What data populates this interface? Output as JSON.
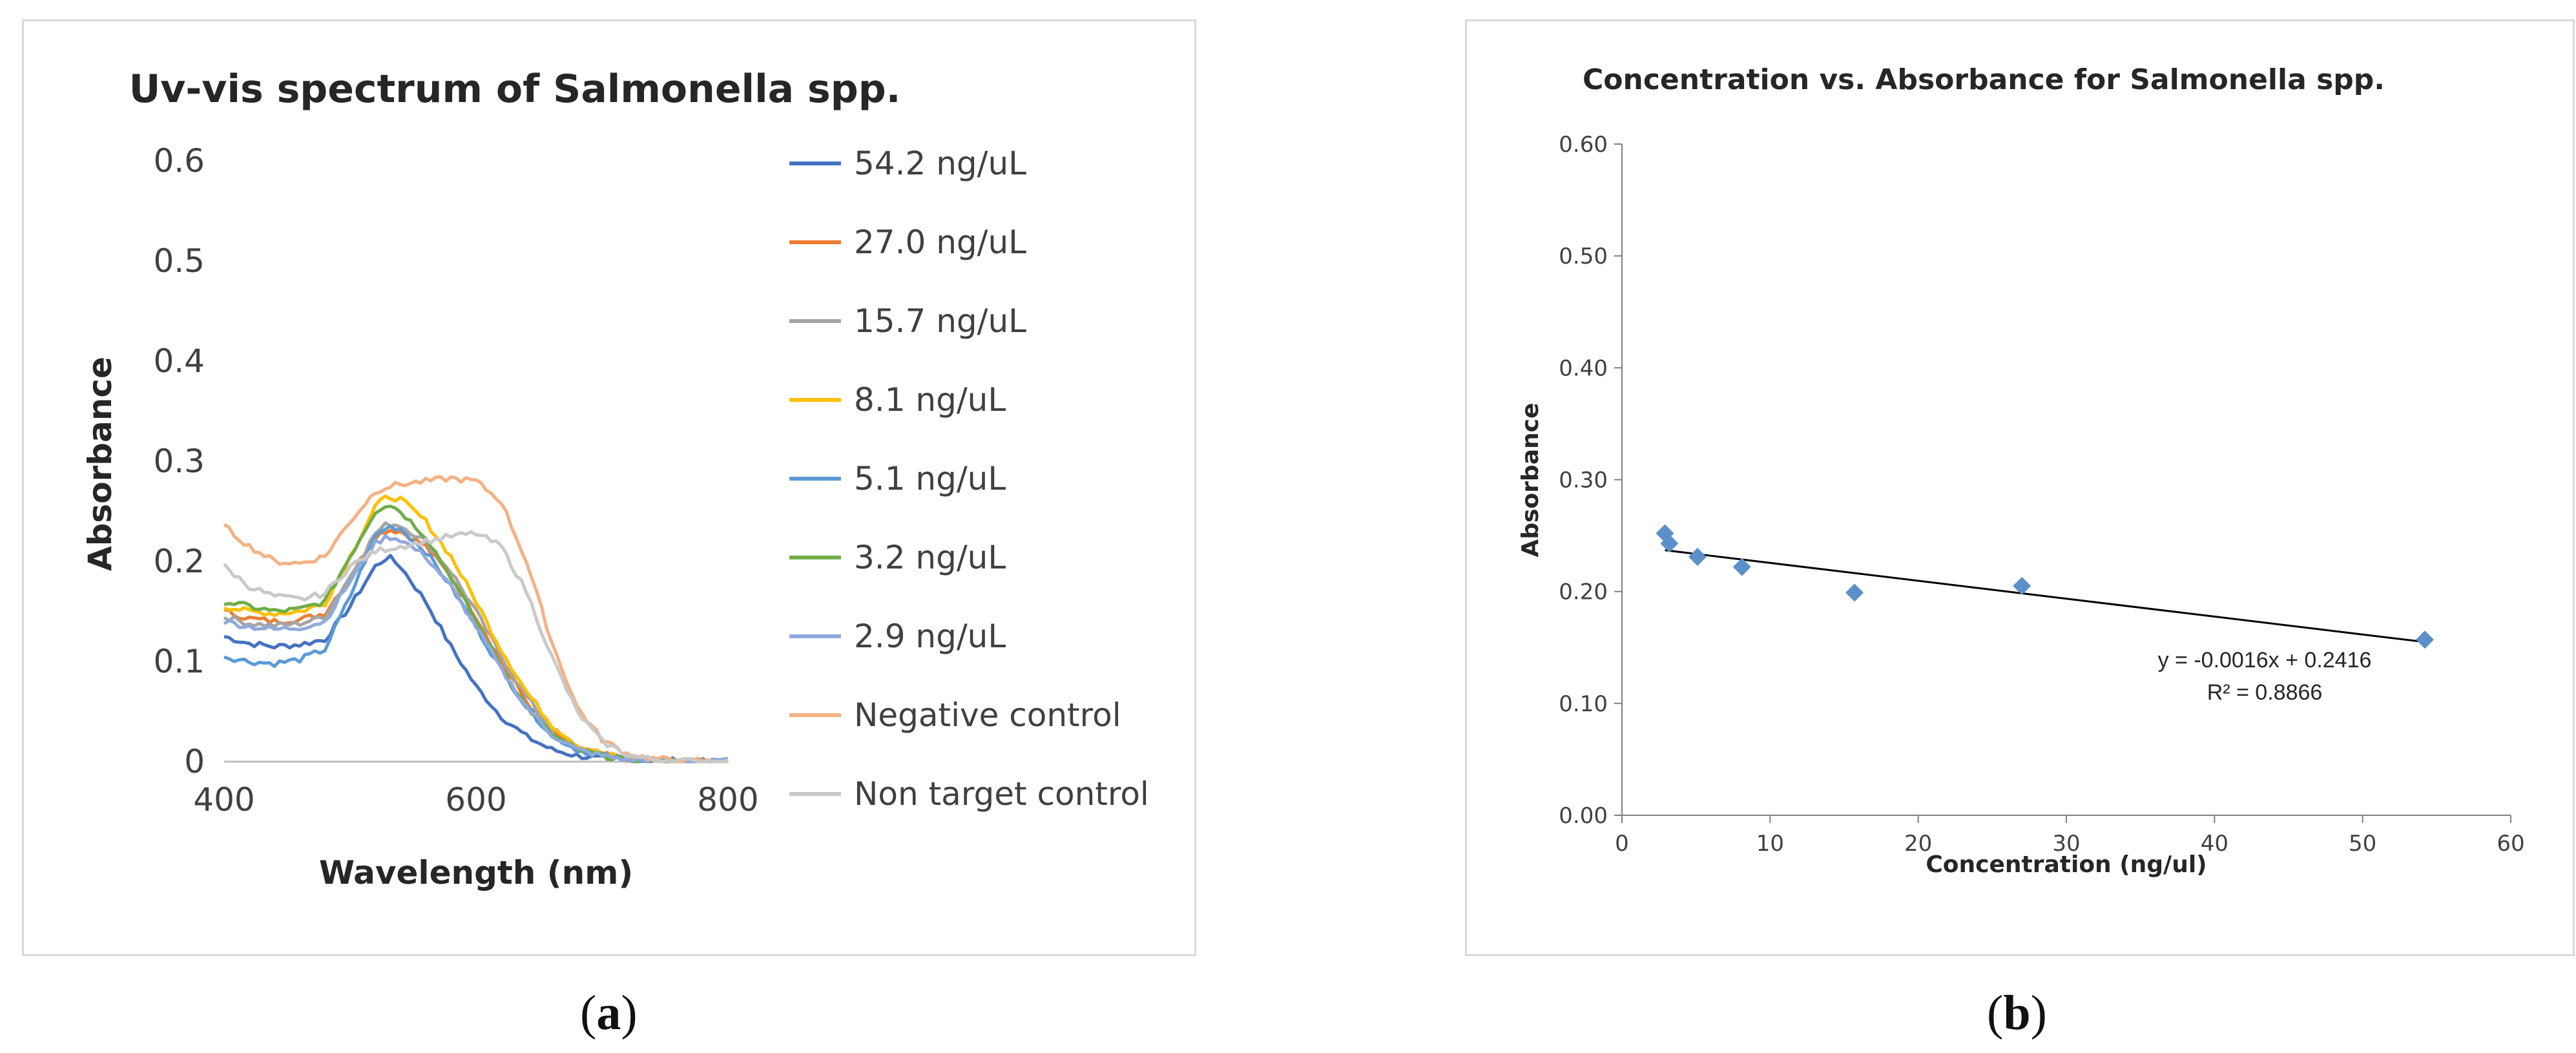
{
  "chart_data": [
    {
      "type": "line",
      "title": "Uv-vis spectrum of Salmonella spp.",
      "xlabel": "Wavelength (nm)",
      "ylabel": "Absorbance",
      "xlim": [
        400,
        800
      ],
      "ylim": [
        0,
        0.6
      ],
      "xticks": [
        "400",
        "600",
        "800"
      ],
      "yticks": [
        "0",
        "0.1",
        "0.2",
        "0.3",
        "0.4",
        "0.5",
        "0.6"
      ],
      "x": [
        400,
        420,
        440,
        460,
        480,
        500,
        520,
        530,
        540,
        560,
        580,
        600,
        620,
        640,
        660,
        680,
        700,
        720,
        740,
        760,
        780,
        800
      ],
      "series": [
        {
          "name": "54.2 ng/uL",
          "color": "#4472c4",
          "values": [
            0.125,
            0.118,
            0.115,
            0.117,
            0.122,
            0.155,
            0.195,
            0.205,
            0.195,
            0.16,
            0.115,
            0.075,
            0.045,
            0.025,
            0.012,
            0.006,
            0.003,
            0.002,
            0.001,
            0.001,
            0.0,
            0.0
          ]
        },
        {
          "name": "27.0 ng/uL",
          "color": "#ed7d31",
          "values": [
            0.15,
            0.143,
            0.14,
            0.142,
            0.148,
            0.185,
            0.225,
            0.232,
            0.23,
            0.215,
            0.185,
            0.145,
            0.1,
            0.06,
            0.03,
            0.014,
            0.007,
            0.003,
            0.001,
            0.0,
            0.0,
            0.0
          ]
        },
        {
          "name": "15.7 ng/uL",
          "color": "#a5a5a5",
          "values": [
            0.145,
            0.138,
            0.136,
            0.138,
            0.145,
            0.185,
            0.228,
            0.238,
            0.236,
            0.22,
            0.19,
            0.15,
            0.105,
            0.065,
            0.033,
            0.015,
            0.007,
            0.003,
            0.001,
            0.0,
            0.0,
            0.0
          ]
        },
        {
          "name": "8.1 ng/uL",
          "color": "#ffc000",
          "values": [
            0.155,
            0.15,
            0.148,
            0.15,
            0.158,
            0.205,
            0.255,
            0.265,
            0.262,
            0.24,
            0.205,
            0.16,
            0.112,
            0.07,
            0.037,
            0.017,
            0.008,
            0.003,
            0.001,
            0.0,
            0.0,
            0.0
          ]
        },
        {
          "name": "5.1 ng/uL",
          "color": "#5b9bd5",
          "values": [
            0.105,
            0.1,
            0.098,
            0.102,
            0.112,
            0.165,
            0.225,
            0.235,
            0.233,
            0.21,
            0.175,
            0.135,
            0.092,
            0.055,
            0.027,
            0.012,
            0.006,
            0.002,
            0.001,
            0.0,
            0.0,
            0.0
          ]
        },
        {
          "name": "3.2 ng/uL",
          "color": "#70ad47",
          "values": [
            0.16,
            0.155,
            0.15,
            0.152,
            0.16,
            0.205,
            0.25,
            0.258,
            0.25,
            0.225,
            0.185,
            0.14,
            0.095,
            0.055,
            0.027,
            0.012,
            0.006,
            0.002,
            0.001,
            0.0,
            0.0,
            0.0
          ]
        },
        {
          "name": "2.9 ng/uL",
          "color": "#8faadc",
          "values": [
            0.14,
            0.135,
            0.132,
            0.134,
            0.14,
            0.18,
            0.218,
            0.225,
            0.222,
            0.205,
            0.175,
            0.135,
            0.092,
            0.055,
            0.027,
            0.012,
            0.006,
            0.002,
            0.001,
            0.0,
            0.0,
            0.0
          ]
        },
        {
          "name": "Negative control",
          "color": "#f4b183",
          "values": [
            0.235,
            0.215,
            0.2,
            0.198,
            0.205,
            0.24,
            0.27,
            0.275,
            0.277,
            0.28,
            0.283,
            0.28,
            0.26,
            0.2,
            0.12,
            0.055,
            0.022,
            0.008,
            0.003,
            0.001,
            0.0,
            0.0
          ]
        },
        {
          "name": "Non target control",
          "color": "#c9c9c9",
          "values": [
            0.195,
            0.175,
            0.165,
            0.162,
            0.168,
            0.195,
            0.21,
            0.213,
            0.215,
            0.22,
            0.225,
            0.228,
            0.215,
            0.17,
            0.105,
            0.05,
            0.02,
            0.007,
            0.002,
            0.001,
            0.0,
            0.0
          ]
        }
      ]
    },
    {
      "type": "scatter",
      "title": "Concentration vs. Absorbance for Salmonella spp.",
      "xlabel": "Concentration (ng/ul)",
      "ylabel": "Absorbance",
      "xlim": [
        0,
        60
      ],
      "ylim": [
        0,
        0.6
      ],
      "xticks": [
        "0",
        "10",
        "20",
        "30",
        "40",
        "50",
        "60"
      ],
      "yticks": [
        "0.00",
        "0.10",
        "0.20",
        "0.30",
        "0.40",
        "0.50",
        "0.60"
      ],
      "marker_color": "#5b8fc9",
      "points": [
        {
          "x": 2.9,
          "y": 0.252
        },
        {
          "x": 3.2,
          "y": 0.243
        },
        {
          "x": 5.1,
          "y": 0.231
        },
        {
          "x": 8.1,
          "y": 0.222
        },
        {
          "x": 15.7,
          "y": 0.199
        },
        {
          "x": 27.0,
          "y": 0.205
        },
        {
          "x": 54.2,
          "y": 0.157
        }
      ],
      "trendline": {
        "slope": -0.0016,
        "intercept": 0.2416,
        "x_from": 2.9,
        "x_to": 54.2
      },
      "annotations": [
        "y = -0.0016x + 0.2416",
        "R² = 0.8866"
      ]
    }
  ],
  "captions": {
    "a_open": "(",
    "a_letter": "a",
    "a_close": ")",
    "b_open": "(",
    "b_letter": "b",
    "b_close": ")"
  }
}
